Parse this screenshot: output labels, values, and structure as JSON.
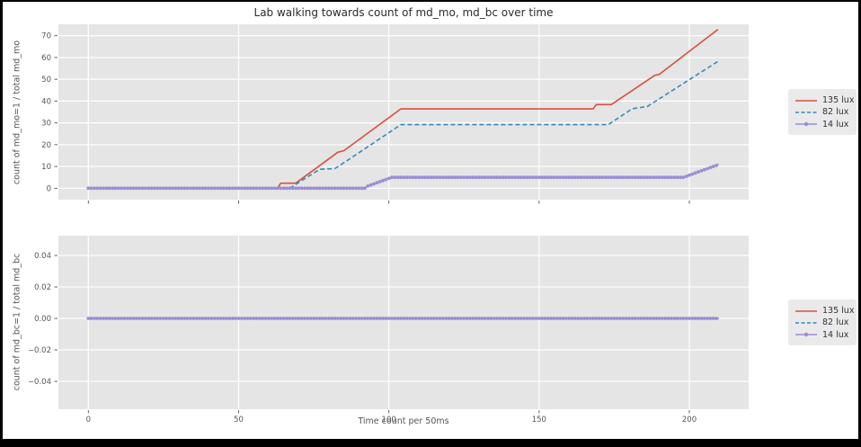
{
  "window": {
    "frame_color": "#000000",
    "figure_bg": "#ffffff"
  },
  "title": "Lab walking towards count of md_mo, md_bc over time",
  "xlabel": "Time count per 50ms",
  "colors": {
    "series_red": "#DB4F3B",
    "series_blue": "#348ABD",
    "series_purple": "#988ED5",
    "axes_bg": "#E5E5E5",
    "grid": "#FFFFFF",
    "tick": "#555555",
    "tick_text": "#555555",
    "title_text": "#2B2B2B",
    "legend_bg": "#EAEAEA",
    "legend_text": "#333333"
  },
  "legend": {
    "items": [
      {
        "label": "135 lux",
        "style": "solid",
        "color_key": "series_red"
      },
      {
        "label": "82 lux",
        "style": "dashed",
        "color_key": "series_blue"
      },
      {
        "label": "14 lux",
        "style": "marker",
        "color_key": "series_purple"
      }
    ]
  },
  "chart_data": [
    {
      "type": "line",
      "title": "Lab walking towards count of md_mo, md_bc over time",
      "ylabel": "count of md_mo=1 / total md_mo",
      "xlabel": "",
      "xlim": [
        -9.96,
        219.74
      ],
      "ylim": [
        -5.24,
        75.24
      ],
      "xticks": [
        0,
        50,
        100,
        150,
        200
      ],
      "xtick_labels": [
        "0",
        "50",
        "100",
        "150",
        "200"
      ],
      "yticks": [
        0,
        10,
        20,
        30,
        40,
        50,
        60,
        70
      ],
      "ytick_labels": [
        "0",
        "10",
        "20",
        "30",
        "40",
        "50",
        "60",
        "70"
      ],
      "show_xticklabels": false,
      "grid": true,
      "legend_position": "outside-right",
      "series": [
        {
          "name": "135 lux",
          "color_key": "series_red",
          "dash": "solid",
          "marker": false,
          "points": [
            [
              0,
              0
            ],
            [
              63,
              0
            ],
            [
              64,
              2.3
            ],
            [
              69,
              2.3
            ],
            [
              83,
              16.5
            ],
            [
              85,
              17.2
            ],
            [
              104,
              36.4
            ],
            [
              168,
              36.4
            ],
            [
              169,
              38.4
            ],
            [
              174,
              38.4
            ],
            [
              188.5,
              51.8
            ],
            [
              190,
              52.3
            ],
            [
              209.5,
              72.9
            ]
          ]
        },
        {
          "name": "82 lux",
          "color_key": "series_blue",
          "dash": "dashed",
          "marker": false,
          "points": [
            [
              0,
              0
            ],
            [
              67,
              0
            ],
            [
              71,
              3.5
            ],
            [
              77,
              8.7
            ],
            [
              82,
              9.0
            ],
            [
              87,
              13.5
            ],
            [
              104,
              29.2
            ],
            [
              173,
              29.2
            ],
            [
              181,
              36.5
            ],
            [
              186,
              37.5
            ],
            [
              209.5,
              58.2
            ]
          ]
        },
        {
          "name": "14 lux",
          "color_key": "series_purple",
          "dash": "solid",
          "marker": true,
          "marker_step": 1,
          "points": [
            [
              0,
              0
            ],
            [
              92,
              0
            ],
            [
              93,
              1
            ],
            [
              95,
              2
            ],
            [
              97,
              3
            ],
            [
              99,
              4
            ],
            [
              101,
              5
            ],
            [
              198,
              5
            ],
            [
              200,
              6
            ],
            [
              202,
              7
            ],
            [
              204,
              8
            ],
            [
              205,
              8.5
            ],
            [
              206,
              9
            ],
            [
              207,
              9.5
            ],
            [
              208,
              10
            ],
            [
              209,
              10.5
            ],
            [
              209.8,
              11.2
            ]
          ]
        }
      ]
    },
    {
      "type": "line",
      "title": "",
      "ylabel": "count of md_bc=1 / total md_bc",
      "xlabel": "Time count per 50ms",
      "xlim": [
        -9.96,
        219.74
      ],
      "ylim": [
        -0.0577,
        0.0526
      ],
      "xticks": [
        0,
        50,
        100,
        150,
        200
      ],
      "xtick_labels": [
        "0",
        "50",
        "100",
        "150",
        "200"
      ],
      "yticks": [
        -0.04,
        -0.02,
        0,
        0.02,
        0.04
      ],
      "ytick_labels": [
        "−0.04",
        "−0.02",
        "0.00",
        "0.02",
        "0.04"
      ],
      "show_xticklabels": true,
      "grid": true,
      "legend_position": "outside-right",
      "series": [
        {
          "name": "135 lux",
          "color_key": "series_red",
          "dash": "solid",
          "marker": false,
          "points": [
            [
              0,
              0
            ],
            [
              209.8,
              0
            ]
          ]
        },
        {
          "name": "82 lux",
          "color_key": "series_blue",
          "dash": "dashed",
          "marker": false,
          "points": [
            [
              0,
              0
            ],
            [
              209.8,
              0
            ]
          ]
        },
        {
          "name": "14 lux",
          "color_key": "series_purple",
          "dash": "solid",
          "marker": true,
          "marker_step": 1,
          "points": [
            [
              0,
              0
            ],
            [
              209.8,
              0
            ]
          ]
        }
      ]
    }
  ]
}
